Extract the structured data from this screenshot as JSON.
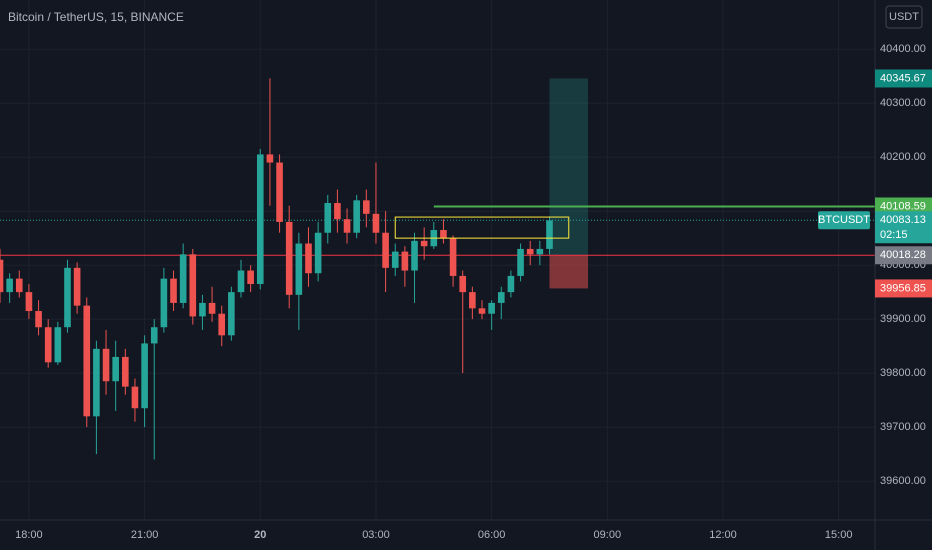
{
  "chart_data": {
    "type": "candlestick",
    "title": "Bitcoin / TetherUS, 15, BINANCE",
    "currency": "USDT",
    "symbol": "BTCUSDT",
    "up_color": "#26a69a",
    "down_color": "#ef5350",
    "x": [
      "17:15",
      "17:30",
      "17:45",
      "18:00",
      "18:15",
      "18:30",
      "18:45",
      "19:00",
      "19:15",
      "19:30",
      "19:45",
      "20:00",
      "20:15",
      "20:30",
      "20:45",
      "21:00",
      "21:15",
      "21:30",
      "21:45",
      "22:00",
      "22:15",
      "22:30",
      "22:45",
      "23:00",
      "23:15",
      "23:30",
      "23:45",
      "00:00",
      "00:15",
      "00:30",
      "00:45",
      "01:00",
      "01:15",
      "01:30",
      "01:45",
      "02:00",
      "02:15",
      "02:30",
      "02:45",
      "03:00",
      "03:15",
      "03:30",
      "03:45",
      "04:00",
      "04:15",
      "04:30",
      "04:45",
      "05:00",
      "05:15",
      "05:30",
      "05:45",
      "06:00",
      "06:15",
      "06:30",
      "06:45",
      "07:00",
      "07:15",
      "07:30"
    ],
    "open": [
      40010,
      39950,
      39975,
      39950,
      39915,
      39885,
      39820,
      39885,
      39995,
      39925,
      39720,
      39845,
      39785,
      39830,
      39775,
      39735,
      39855,
      39885,
      39975,
      39930,
      40020,
      39905,
      39930,
      39910,
      39870,
      39950,
      39990,
      39965,
      40205,
      40190,
      40080,
      39945,
      40040,
      39985,
      40060,
      40115,
      40085,
      40060,
      40120,
      40095,
      40060,
      39995,
      40025,
      39990,
      40045,
      40035,
      40065,
      40050,
      39980,
      39950,
      39920,
      39910,
      39930,
      39950,
      39980,
      40030,
      40020,
      40030
    ],
    "high": [
      40030,
      39985,
      39990,
      39965,
      39935,
      39900,
      39895,
      40010,
      40005,
      39940,
      39860,
      39880,
      39860,
      39845,
      39790,
      39870,
      39900,
      39995,
      39990,
      40040,
      40030,
      39945,
      39960,
      39925,
      39960,
      40010,
      40000,
      40215,
      40346,
      40205,
      40110,
      40060,
      40070,
      40080,
      40130,
      40140,
      40105,
      40130,
      40140,
      40190,
      40100,
      40040,
      40035,
      40060,
      40070,
      40080,
      40085,
      40055,
      39990,
      39960,
      39935,
      39935,
      39960,
      39990,
      40040,
      40045,
      40045,
      40090
    ],
    "low": [
      39930,
      39930,
      39940,
      39900,
      39870,
      39810,
      39815,
      39875,
      39910,
      39700,
      39650,
      39760,
      39730,
      39760,
      39710,
      39700,
      39640,
      39875,
      39915,
      39920,
      39890,
      39880,
      39895,
      39850,
      39860,
      39940,
      39950,
      39955,
      40110,
      40060,
      39920,
      39880,
      39960,
      39970,
      40040,
      40060,
      40040,
      40050,
      40070,
      40040,
      39950,
      39980,
      39960,
      39930,
      40010,
      40030,
      40040,
      39960,
      39800,
      39900,
      39900,
      39880,
      39900,
      39940,
      39970,
      40000,
      40000,
      40020
    ],
    "close": [
      39950,
      39975,
      39950,
      39915,
      39885,
      39820,
      39885,
      39995,
      39925,
      39720,
      39845,
      39785,
      39830,
      39775,
      39735,
      39855,
      39885,
      39975,
      39930,
      40020,
      39905,
      39930,
      39910,
      39870,
      39950,
      39990,
      39965,
      40205,
      40190,
      40080,
      39945,
      40040,
      39985,
      40060,
      40115,
      40085,
      40060,
      40120,
      40095,
      40060,
      39995,
      40025,
      39990,
      40045,
      40035,
      40065,
      40050,
      39980,
      39950,
      39920,
      39910,
      39930,
      39950,
      39980,
      40030,
      40020,
      40030,
      40083
    ],
    "ylim": [
      39528,
      40491
    ],
    "yticks": [
      {
        "value": 39600,
        "label": "39600.00"
      },
      {
        "value": 39700,
        "label": "39700.00"
      },
      {
        "value": 39800,
        "label": "39800.00"
      },
      {
        "value": 39900,
        "label": "39900.00"
      },
      {
        "value": 40000,
        "label": "40000.00"
      },
      {
        "value": 40100,
        "label": "40100.00"
      },
      {
        "value": 40200,
        "label": "40200.00"
      },
      {
        "value": 40300,
        "label": "40300.00"
      },
      {
        "value": 40400,
        "label": "40400.00"
      }
    ],
    "xticks": [
      "18:00",
      "21:00",
      {
        "value": "00:00",
        "label": "20"
      },
      "03:00",
      "06:00",
      "09:00",
      "12:00",
      "15:00"
    ],
    "grid": true,
    "last_price": 40083.13,
    "countdown": "02:15",
    "level": {
      "value": 40108.59,
      "start": "04:30",
      "color": "#4caf50"
    },
    "reference": {
      "value": 40018.28,
      "color": "#f23645"
    },
    "position": {
      "target": 40345.67,
      "entry": 40018.28,
      "stop": 39956.85,
      "start": "07:30",
      "end": "08:30"
    },
    "zone": {
      "high": 40089,
      "low": 40050,
      "start": "03:30",
      "end": "08:00",
      "color": "#ffeb3b"
    }
  }
}
